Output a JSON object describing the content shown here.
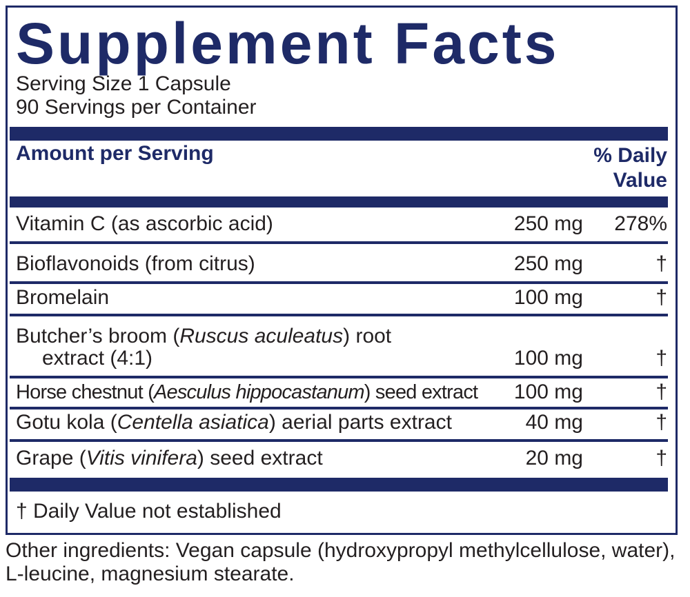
{
  "panel": {
    "title": "Supplement Facts",
    "serving_size": "Serving Size 1 Capsule",
    "servings_per_container": "90 Servings per Container",
    "header": {
      "amount": "Amount per Serving",
      "daily_value": "% Daily Value"
    },
    "rows": [
      {
        "name": [
          {
            "text": "Vitamin C (as ascorbic acid)",
            "italic": false
          }
        ],
        "amount": "250 mg",
        "dv": "278%"
      },
      {
        "name": [
          {
            "text": "Bioflavonoids (from citrus)",
            "italic": false
          }
        ],
        "amount": "250 mg",
        "dv": "†"
      },
      {
        "name": [
          {
            "text": "Bromelain",
            "italic": false
          }
        ],
        "amount": "100 mg",
        "dv": "†"
      },
      {
        "name": [
          {
            "text": "Butcher’s broom (",
            "italic": false
          },
          {
            "text": "Ruscus aculeatus",
            "italic": true
          },
          {
            "text": ") root",
            "italic": false
          }
        ],
        "continuation": "extract (4:1)",
        "amount": "100 mg",
        "dv": "†"
      },
      {
        "name": [
          {
            "text": "Horse chestnut (",
            "italic": false
          },
          {
            "text": "Aesculus hippocastanum",
            "italic": true
          },
          {
            "text": ") seed extract",
            "italic": false
          }
        ],
        "amount": "100 mg",
        "dv": "†"
      },
      {
        "name": [
          {
            "text": "Gotu kola (",
            "italic": false
          },
          {
            "text": "Centella asiatica",
            "italic": true
          },
          {
            "text": ") aerial parts extract",
            "italic": false
          }
        ],
        "amount": "40 mg",
        "dv": "†"
      },
      {
        "name": [
          {
            "text": "Grape (",
            "italic": false
          },
          {
            "text": "Vitis vinifera",
            "italic": true
          },
          {
            "text": ") seed extract",
            "italic": false
          }
        ],
        "amount": "20 mg",
        "dv": "†"
      }
    ],
    "footnote": "† Daily Value not established"
  },
  "other_ingredients": "Other ingredients: Vegan capsule (hydroxypropyl methylcellulose, water), L-leucine, magnesium stearate."
}
